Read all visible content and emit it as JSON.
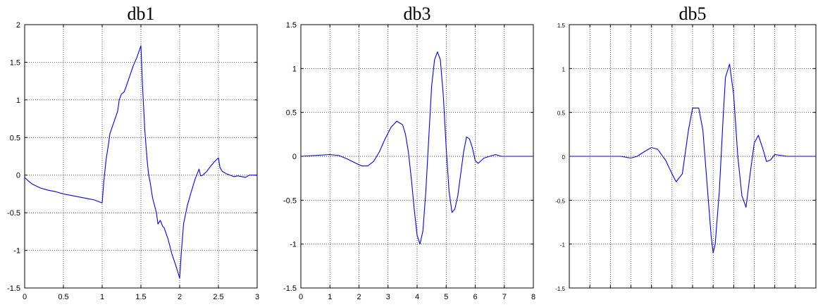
{
  "chart_data": [
    {
      "type": "line",
      "title": "db1",
      "xlim": [
        0,
        3
      ],
      "ylim": [
        -1.5,
        2
      ],
      "xticks": [
        "0",
        "0.5",
        "1",
        "1.5",
        "2",
        "2.5",
        "3"
      ],
      "yticks": [
        "2",
        "1.5",
        "1",
        "0.5",
        "0",
        "-0.5",
        "-1",
        "-1.5"
      ],
      "grid": true,
      "color": "#0000ff",
      "x": [
        0,
        0.05,
        0.1,
        0.2,
        0.3,
        0.4,
        0.5,
        0.6,
        0.7,
        0.8,
        0.9,
        1.0,
        1.02,
        1.05,
        1.08,
        1.1,
        1.15,
        1.2,
        1.22,
        1.25,
        1.28,
        1.3,
        1.35,
        1.4,
        1.45,
        1.5,
        1.52,
        1.55,
        1.58,
        1.6,
        1.62,
        1.65,
        1.7,
        1.72,
        1.75,
        1.78,
        1.8,
        1.85,
        1.9,
        1.95,
        2.0,
        2.02,
        2.05,
        2.1,
        2.15,
        2.2,
        2.25,
        2.27,
        2.3,
        2.35,
        2.4,
        2.45,
        2.5,
        2.52,
        2.55,
        2.6,
        2.65,
        2.7,
        2.75,
        2.8,
        2.85,
        2.9,
        2.95,
        3.0
      ],
      "y": [
        -0.03,
        -0.08,
        -0.12,
        -0.17,
        -0.2,
        -0.22,
        -0.25,
        -0.27,
        -0.29,
        -0.31,
        -0.33,
        -0.37,
        -0.1,
        0.2,
        0.4,
        0.55,
        0.7,
        0.85,
        1.0,
        1.08,
        1.1,
        1.15,
        1.3,
        1.45,
        1.57,
        1.72,
        1.2,
        0.6,
        0.2,
        0.0,
        -0.1,
        -0.3,
        -0.5,
        -0.65,
        -0.6,
        -0.68,
        -0.7,
        -0.85,
        -1.05,
        -1.2,
        -1.37,
        -1.05,
        -0.65,
        -0.4,
        -0.22,
        -0.05,
        0.08,
        -0.01,
        0.0,
        0.05,
        0.12,
        0.18,
        0.23,
        0.1,
        0.05,
        0.02,
        0.0,
        -0.02,
        -0.01,
        -0.02,
        -0.03,
        0.0,
        0.0,
        0.0
      ]
    },
    {
      "type": "line",
      "title": "db3",
      "xlim": [
        0,
        8
      ],
      "ylim": [
        -1.5,
        1.5
      ],
      "xticks": [
        "0",
        "1",
        "2",
        "3",
        "4",
        "5",
        "6",
        "7",
        "8"
      ],
      "yticks": [
        "1.5",
        "1",
        "0.5",
        "0",
        "-0.5",
        "-1",
        "-1.5"
      ],
      "grid": true,
      "color": "#0000ff",
      "x": [
        0,
        0.5,
        1.0,
        1.3,
        1.6,
        1.9,
        2.1,
        2.3,
        2.5,
        2.7,
        2.9,
        3.1,
        3.3,
        3.5,
        3.6,
        3.7,
        3.8,
        3.9,
        4.0,
        4.1,
        4.2,
        4.3,
        4.4,
        4.5,
        4.6,
        4.7,
        4.8,
        4.9,
        5.0,
        5.1,
        5.2,
        5.3,
        5.4,
        5.5,
        5.6,
        5.7,
        5.8,
        5.9,
        6.0,
        6.1,
        6.2,
        6.3,
        6.5,
        6.7,
        6.9,
        7.0,
        7.5,
        8.0
      ],
      "y": [
        0.0,
        0.01,
        0.02,
        0.01,
        -0.03,
        -0.08,
        -0.11,
        -0.11,
        -0.06,
        0.05,
        0.2,
        0.33,
        0.4,
        0.36,
        0.25,
        0.05,
        -0.25,
        -0.6,
        -0.9,
        -1.0,
        -0.85,
        -0.4,
        0.2,
        0.8,
        1.1,
        1.19,
        1.1,
        0.7,
        0.1,
        -0.4,
        -0.64,
        -0.6,
        -0.45,
        -0.2,
        0.05,
        0.22,
        0.2,
        0.1,
        -0.05,
        -0.08,
        -0.05,
        -0.02,
        0.0,
        0.02,
        0.0,
        0.0,
        0.0,
        0.0
      ]
    },
    {
      "type": "line",
      "title": "db5",
      "xlim": [
        0,
        12
      ],
      "ylim": [
        -1.5,
        1.5
      ],
      "xticks": [
        "",
        "",
        "",
        "",
        "",
        "",
        "",
        "",
        "",
        "",
        "",
        "",
        ""
      ],
      "yticks": [
        "1.5",
        "1",
        "0.5",
        "0",
        "-0.5",
        "-1",
        "-1.5"
      ],
      "grid": true,
      "color": "#0000ff",
      "x": [
        0,
        1.0,
        2.0,
        2.5,
        3.0,
        3.3,
        3.7,
        4.0,
        4.3,
        4.7,
        5.0,
        5.2,
        5.5,
        5.8,
        6.0,
        6.3,
        6.5,
        6.7,
        6.9,
        7.0,
        7.1,
        7.3,
        7.5,
        7.6,
        7.8,
        8.0,
        8.2,
        8.4,
        8.6,
        8.8,
        9.0,
        9.2,
        9.4,
        9.6,
        9.8,
        10.0,
        10.3,
        10.6,
        11.0,
        11.5,
        12.0
      ],
      "y": [
        0.0,
        0.0,
        0.0,
        0.0,
        -0.02,
        0.0,
        0.06,
        0.1,
        0.08,
        -0.05,
        -0.2,
        -0.29,
        -0.2,
        0.3,
        0.55,
        0.55,
        0.3,
        -0.3,
        -0.9,
        -1.1,
        -1.0,
        -0.4,
        0.5,
        0.9,
        1.05,
        0.7,
        0.0,
        -0.45,
        -0.58,
        -0.2,
        0.15,
        0.24,
        0.1,
        -0.06,
        -0.04,
        0.02,
        0.01,
        0.0,
        0.0,
        0.0,
        0.0
      ]
    }
  ]
}
